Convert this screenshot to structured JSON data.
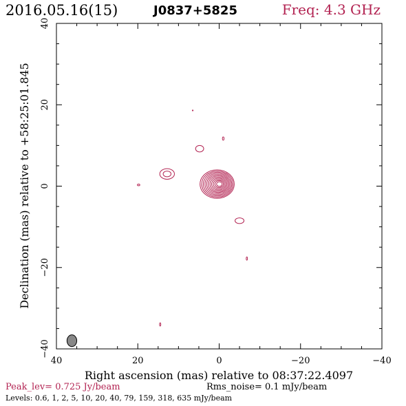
{
  "header": {
    "date": "2016.05.16(15)",
    "source": "J0837+5825",
    "freq": "Freq: 4.3 GHz"
  },
  "footer": {
    "peak": "Peak_lev=  0.725 Jy/beam",
    "rms": "Rms_noise=  0.1 mJy/beam",
    "levels": "Levels: 0.6,    1,    2,    5,   10,   20,   40,   79,  159,  318,  635 mJy/beam"
  },
  "colors": {
    "contour": "#b22251",
    "beam_fill": "#888888",
    "axis": "#000000"
  },
  "chart_data": {
    "type": "contour",
    "xlabel": "Right ascension (mas) relative to 08:37:22.4097",
    "ylabel": "Declination (mas) relative to +58:25:01.845",
    "xlim": [
      40,
      -40
    ],
    "ylim": [
      -40,
      40
    ],
    "xticks": [
      "40",
      "20",
      "0",
      "−20",
      "−40"
    ],
    "yticks": [
      "−40",
      "−20",
      "0",
      "20",
      "40"
    ],
    "xtick_values": [
      40,
      20,
      0,
      -20,
      -40
    ],
    "ytick_values": [
      -40,
      -20,
      0,
      20,
      40
    ],
    "contour_levels_mJy": [
      0.6,
      1,
      2,
      5,
      10,
      20,
      40,
      79,
      159,
      318,
      635
    ],
    "peak_Jy_per_beam": 0.725,
    "rms_mJy_per_beam": 0.1,
    "features": [
      {
        "kind": "core",
        "x": 0.5,
        "y": 0.5,
        "rx": 4.2,
        "ry": 3.5,
        "nested": 11
      },
      {
        "kind": "knot",
        "x": 12.8,
        "y": 3.0,
        "rx": 1.8,
        "ry": 1.3,
        "nested": 2
      },
      {
        "kind": "knot",
        "x": -5.0,
        "y": -8.5,
        "rx": 1.1,
        "ry": 0.7,
        "nested": 1
      },
      {
        "kind": "knot",
        "x": 4.8,
        "y": 9.2,
        "rx": 1.0,
        "ry": 0.8,
        "nested": 1
      },
      {
        "kind": "knot",
        "x": -1.0,
        "y": 11.7,
        "rx": 0.2,
        "ry": 0.4,
        "nested": 1
      },
      {
        "kind": "knot",
        "x": 19.8,
        "y": 0.3,
        "rx": 0.3,
        "ry": 0.2,
        "nested": 1
      },
      {
        "kind": "knot",
        "x": -6.8,
        "y": -17.8,
        "rx": 0.15,
        "ry": 0.4,
        "nested": 1
      },
      {
        "kind": "knot",
        "x": 14.5,
        "y": -34.0,
        "rx": 0.15,
        "ry": 0.4,
        "nested": 1
      },
      {
        "kind": "knot",
        "x": 6.5,
        "y": 18.6,
        "rx": 0.1,
        "ry": 0.1,
        "nested": 1
      }
    ],
    "beam": {
      "x": 36.2,
      "y": -38.0,
      "major_mas": 2.4,
      "minor_mas": 2.0
    }
  }
}
